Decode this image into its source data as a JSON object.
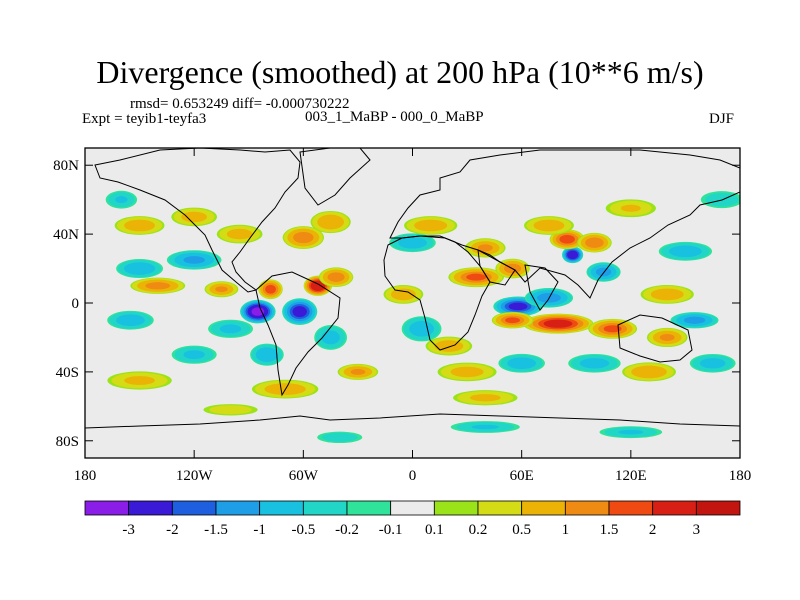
{
  "chart_data": {
    "type": "heatmap",
    "title": "Divergence (smoothed) at 200 hPa (10**6 m/s)",
    "rmsd_text": "rmsd= 0.653249 diff= -0.000730222",
    "experiment_text": "Expt = teyib1-teyfa3",
    "comparison_text": "003_1_MaBP - 000_0_MaBP",
    "season": "DJF",
    "xlim": [
      -180,
      180
    ],
    "ylim": [
      -90,
      90
    ],
    "x_ticks": [
      {
        "value": -180,
        "label": "180"
      },
      {
        "value": -120,
        "label": "120W"
      },
      {
        "value": -60,
        "label": "60W"
      },
      {
        "value": 0,
        "label": "0"
      },
      {
        "value": 60,
        "label": "60E"
      },
      {
        "value": 120,
        "label": "120E"
      },
      {
        "value": 180,
        "label": "180"
      }
    ],
    "y_ticks": [
      {
        "value": 80,
        "label": "80N"
      },
      {
        "value": 40,
        "label": "40N"
      },
      {
        "value": 0,
        "label": "0"
      },
      {
        "value": -40,
        "label": "40S"
      },
      {
        "value": -80,
        "label": "80S"
      }
    ],
    "colorbar": {
      "levels": [
        "-3",
        "-2",
        "-1.5",
        "-1",
        "-0.5",
        "-0.2",
        "-0.1",
        "0.1",
        "0.2",
        "0.5",
        "1",
        "1.5",
        "2",
        "3"
      ],
      "colors": [
        "#8a1ee8",
        "#3a1ad6",
        "#1e5fdf",
        "#1e9ee6",
        "#19c1e0",
        "#21d6c6",
        "#2fe39a",
        "#ebebeb",
        "#9be319",
        "#d3dc14",
        "#eab306",
        "#ef8a13",
        "#f04a13",
        "#d81f15",
        "#c2150f"
      ]
    },
    "blobs": [
      {
        "lon": -85,
        "lat": -5,
        "value": -3.2,
        "w": 10,
        "h": 7
      },
      {
        "lon": -62,
        "lat": -5,
        "value": -2.3,
        "w": 10,
        "h": 8
      },
      {
        "lon": -78,
        "lat": 8,
        "value": 1.8,
        "w": 7,
        "h": 6
      },
      {
        "lon": -52,
        "lat": 10,
        "value": 2.8,
        "w": 8,
        "h": 6
      },
      {
        "lon": -42,
        "lat": 15,
        "value": 1.3,
        "w": 10,
        "h": 6
      },
      {
        "lon": -60,
        "lat": 38,
        "value": 1.3,
        "w": 12,
        "h": 7
      },
      {
        "lon": -45,
        "lat": 47,
        "value": 0.9,
        "w": 12,
        "h": 7
      },
      {
        "lon": -95,
        "lat": 40,
        "value": 0.7,
        "w": 14,
        "h": 6
      },
      {
        "lon": -120,
        "lat": 25,
        "value": -1.1,
        "w": 16,
        "h": 6
      },
      {
        "lon": -150,
        "lat": 20,
        "value": -0.9,
        "w": 14,
        "h": 6
      },
      {
        "lon": -140,
        "lat": 10,
        "value": 1.2,
        "w": 16,
        "h": 5
      },
      {
        "lon": -105,
        "lat": 8,
        "value": 1.0,
        "w": 10,
        "h": 5
      },
      {
        "lon": -150,
        "lat": 45,
        "value": 0.8,
        "w": 15,
        "h": 6
      },
      {
        "lon": -120,
        "lat": 50,
        "value": 0.7,
        "w": 14,
        "h": 6
      },
      {
        "lon": -160,
        "lat": 60,
        "value": -0.5,
        "w": 10,
        "h": 6
      },
      {
        "lon": -155,
        "lat": -10,
        "value": -0.8,
        "w": 14,
        "h": 6
      },
      {
        "lon": -100,
        "lat": -15,
        "value": -0.6,
        "w": 14,
        "h": 6
      },
      {
        "lon": -80,
        "lat": -30,
        "value": -0.9,
        "w": 10,
        "h": 7
      },
      {
        "lon": -45,
        "lat": -20,
        "value": -0.7,
        "w": 10,
        "h": 8
      },
      {
        "lon": -70,
        "lat": -50,
        "value": 0.8,
        "w": 20,
        "h": 6
      },
      {
        "lon": -30,
        "lat": -40,
        "value": 1.0,
        "w": 12,
        "h": 5
      },
      {
        "lon": -150,
        "lat": -45,
        "value": 0.6,
        "w": 20,
        "h": 6
      },
      {
        "lon": -120,
        "lat": -30,
        "value": -0.6,
        "w": 14,
        "h": 6
      },
      {
        "lon": 58,
        "lat": -2,
        "value": -2.2,
        "w": 14,
        "h": 6
      },
      {
        "lon": 75,
        "lat": 3,
        "value": -1.3,
        "w": 14,
        "h": 6
      },
      {
        "lon": 35,
        "lat": 15,
        "value": 1.5,
        "w": 16,
        "h": 6
      },
      {
        "lon": 55,
        "lat": 20,
        "value": 1.3,
        "w": 10,
        "h": 6
      },
      {
        "lon": 40,
        "lat": 32,
        "value": 1.0,
        "w": 12,
        "h": 6
      },
      {
        "lon": 88,
        "lat": 28,
        "value": -2.8,
        "w": 6,
        "h": 5
      },
      {
        "lon": 85,
        "lat": 37,
        "value": 1.8,
        "w": 10,
        "h": 6
      },
      {
        "lon": 100,
        "lat": 35,
        "value": 1.4,
        "w": 10,
        "h": 6
      },
      {
        "lon": 105,
        "lat": 18,
        "value": -1.2,
        "w": 10,
        "h": 6
      },
      {
        "lon": 75,
        "lat": 45,
        "value": 0.8,
        "w": 15,
        "h": 6
      },
      {
        "lon": 80,
        "lat": -12,
        "value": 2.3,
        "w": 20,
        "h": 6
      },
      {
        "lon": 55,
        "lat": -10,
        "value": 1.5,
        "w": 12,
        "h": 5
      },
      {
        "lon": 110,
        "lat": -15,
        "value": 1.6,
        "w": 14,
        "h": 6
      },
      {
        "lon": 140,
        "lat": -20,
        "value": 1.0,
        "w": 12,
        "h": 6
      },
      {
        "lon": 155,
        "lat": -10,
        "value": -1.2,
        "w": 14,
        "h": 5
      },
      {
        "lon": 140,
        "lat": 5,
        "value": 0.8,
        "w": 16,
        "h": 6
      },
      {
        "lon": 150,
        "lat": 30,
        "value": -0.8,
        "w": 16,
        "h": 6
      },
      {
        "lon": 0,
        "lat": 35,
        "value": -0.8,
        "w": 14,
        "h": 6
      },
      {
        "lon": 10,
        "lat": 45,
        "value": 0.8,
        "w": 16,
        "h": 6
      },
      {
        "lon": -5,
        "lat": 5,
        "value": 0.8,
        "w": 12,
        "h": 6
      },
      {
        "lon": 5,
        "lat": -15,
        "value": -0.8,
        "w": 12,
        "h": 8
      },
      {
        "lon": 20,
        "lat": -25,
        "value": 0.8,
        "w": 14,
        "h": 6
      },
      {
        "lon": 30,
        "lat": -40,
        "value": 0.7,
        "w": 18,
        "h": 6
      },
      {
        "lon": 60,
        "lat": -35,
        "value": -0.8,
        "w": 14,
        "h": 6
      },
      {
        "lon": 100,
        "lat": -35,
        "value": -0.7,
        "w": 16,
        "h": 6
      },
      {
        "lon": 130,
        "lat": -40,
        "value": 0.9,
        "w": 16,
        "h": 6
      },
      {
        "lon": 165,
        "lat": -35,
        "value": -0.7,
        "w": 14,
        "h": 6
      },
      {
        "lon": 40,
        "lat": -55,
        "value": 0.6,
        "w": 20,
        "h": 5
      },
      {
        "lon": 120,
        "lat": 55,
        "value": 0.5,
        "w": 16,
        "h": 6
      },
      {
        "lon": 170,
        "lat": 60,
        "value": -0.4,
        "w": 14,
        "h": 6
      },
      {
        "lon": 40,
        "lat": -72,
        "value": -0.5,
        "w": 22,
        "h": 4
      },
      {
        "lon": 120,
        "lat": -75,
        "value": -0.5,
        "w": 20,
        "h": 4
      },
      {
        "lon": -40,
        "lat": -78,
        "value": -0.4,
        "w": 15,
        "h": 4
      },
      {
        "lon": -100,
        "lat": -62,
        "value": 0.4,
        "w": 18,
        "h": 4
      }
    ]
  }
}
